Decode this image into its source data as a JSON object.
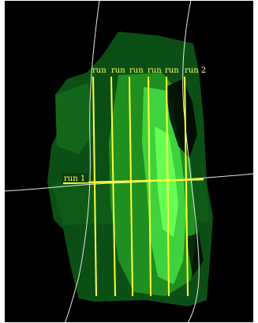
{
  "map": {
    "colors": {
      "background": "#000000",
      "frame": "#ffffff",
      "coverage_dark": "#0b4f14",
      "coverage_mid": "#1f8f1f",
      "coverage_light": "#3fd23f",
      "coverage_bright": "#66ff55",
      "track_line": "#ffff33",
      "label_text": "#ffff66",
      "label_box": "#0b3d10",
      "contour_line": "#e6e6e6"
    },
    "runs": [
      {
        "label": "run"
      },
      {
        "label": "run"
      },
      {
        "label": "run"
      },
      {
        "label": "run"
      },
      {
        "label": "run"
      },
      {
        "label": "run 2"
      }
    ],
    "crossline": {
      "label": "run 1"
    }
  }
}
